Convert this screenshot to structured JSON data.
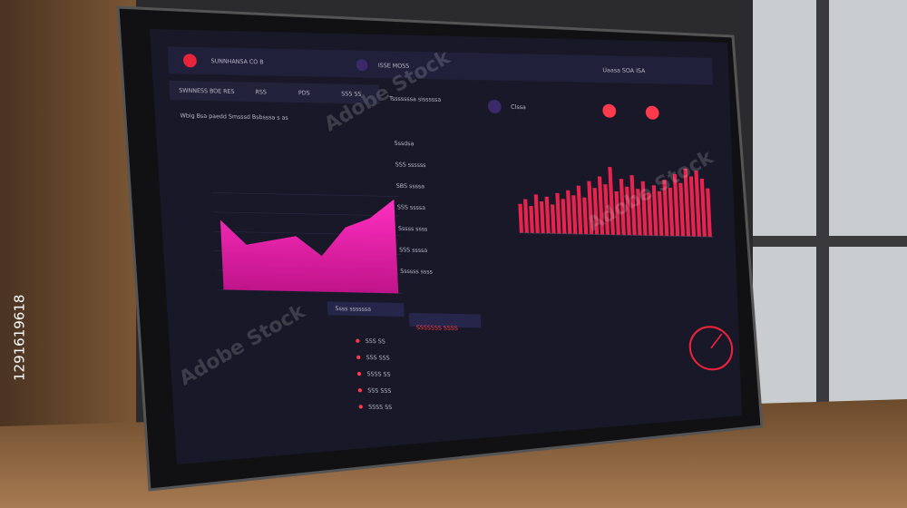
{
  "header": {
    "brand": "SUNNHANSA CO B",
    "tab": "ISSE MOSS",
    "status": "Uaasa SOA ISA"
  },
  "panels": {
    "overview_title": "SWNNESS BOE RES",
    "overview_cols": [
      "RSS",
      "PDS",
      "SSS SS"
    ],
    "chart_caption": "Wbig Bsa paedd Smsssd Bsbsssa s as",
    "side_title": "Tsssssssa sisssssa",
    "side_items": [
      "Sssdsa",
      "SSS ssssss",
      "SBS ssssa",
      "SSS ssssa",
      "Sssss ssss",
      "SSS ssssa",
      "Ssssss ssss"
    ],
    "user_label": "Clssa",
    "footer_tab": "Ssss ssssssa",
    "alert": "SSSSSSS SSSS"
  },
  "area_chart": {
    "values": [
      72,
      47,
      52,
      57,
      37,
      67,
      77,
      97
    ]
  },
  "bar_chart": {
    "values": [
      30,
      35,
      28,
      40,
      33,
      38,
      30,
      42,
      36,
      45,
      40,
      50,
      38,
      55,
      48,
      60,
      52,
      70,
      45,
      58,
      50,
      62,
      48,
      56,
      44,
      52,
      46,
      58,
      50,
      64,
      55,
      70,
      62,
      68,
      60,
      50
    ]
  },
  "list_items": [
    "SSS SS",
    "SSS SSS",
    "SSSS SS",
    "SSS SSS",
    "SSSS SS"
  ],
  "watermark": "Adobe Stock",
  "image_id": "1291619618"
}
